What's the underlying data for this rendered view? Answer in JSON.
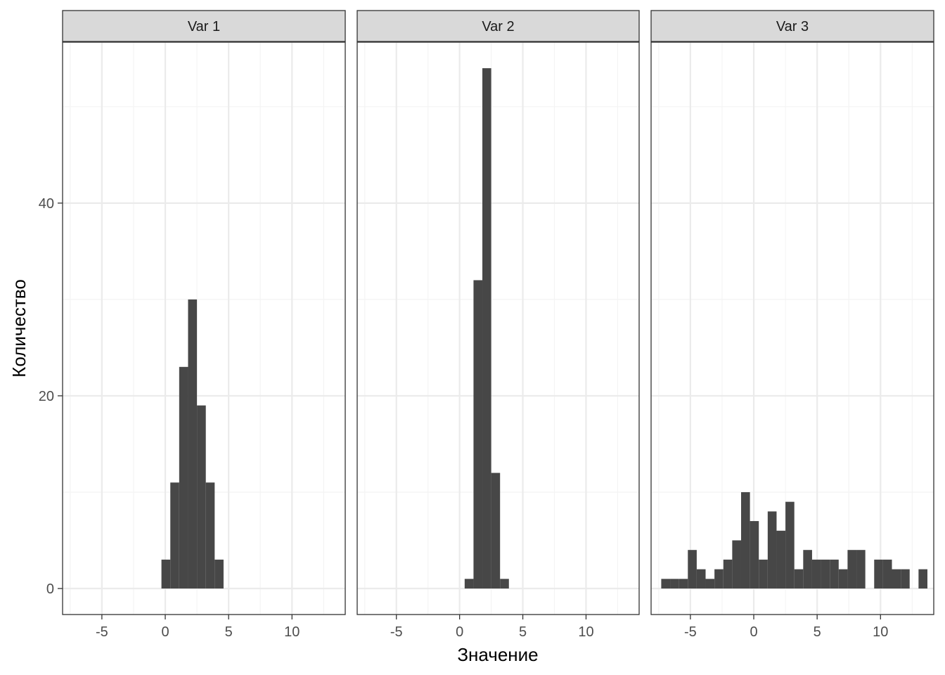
{
  "chart_data": {
    "type": "bar",
    "subtype": "faceted-histogram",
    "xlabel": "Значение",
    "ylabel": "Количество",
    "xlim": [
      -8.1,
      14.2
    ],
    "ylim": [
      -2.7,
      56.7
    ],
    "x_ticks": [
      -5,
      0,
      5,
      10
    ],
    "x_tick_labels": [
      "-5",
      "0",
      "5",
      "10"
    ],
    "y_ticks": [
      0,
      20,
      40
    ],
    "y_tick_labels": [
      "0",
      "20",
      "40"
    ],
    "grid": true,
    "colors": {
      "bar": "#474747",
      "strip_fill": "#d9d9d9",
      "grid_major": "#ebebeb",
      "grid_minor": "#f4f4f4",
      "border": "#333333"
    },
    "facets": [
      {
        "label": "Var 1",
        "bins": [
          {
            "x0": -0.3,
            "x1": 0.4,
            "count": 3
          },
          {
            "x0": 0.4,
            "x1": 1.1,
            "count": 11
          },
          {
            "x0": 1.1,
            "x1": 1.8,
            "count": 23
          },
          {
            "x0": 1.8,
            "x1": 2.5,
            "count": 30
          },
          {
            "x0": 2.5,
            "x1": 3.2,
            "count": 19
          },
          {
            "x0": 3.2,
            "x1": 3.9,
            "count": 11
          },
          {
            "x0": 3.9,
            "x1": 4.6,
            "count": 3
          }
        ]
      },
      {
        "label": "Var 2",
        "bins": [
          {
            "x0": 0.4,
            "x1": 1.1,
            "count": 1
          },
          {
            "x0": 1.1,
            "x1": 1.8,
            "count": 32
          },
          {
            "x0": 1.8,
            "x1": 2.5,
            "count": 54
          },
          {
            "x0": 2.5,
            "x1": 3.2,
            "count": 12
          },
          {
            "x0": 3.2,
            "x1": 3.9,
            "count": 1
          }
        ]
      },
      {
        "label": "Var 3",
        "bins": [
          {
            "x0": -7.3,
            "x1": -6.6,
            "count": 1
          },
          {
            "x0": -6.6,
            "x1": -5.9,
            "count": 1
          },
          {
            "x0": -5.9,
            "x1": -5.2,
            "count": 1
          },
          {
            "x0": -5.2,
            "x1": -4.5,
            "count": 4
          },
          {
            "x0": -4.5,
            "x1": -3.8,
            "count": 2
          },
          {
            "x0": -3.8,
            "x1": -3.1,
            "count": 1
          },
          {
            "x0": -3.1,
            "x1": -2.4,
            "count": 2
          },
          {
            "x0": -2.4,
            "x1": -1.7,
            "count": 3
          },
          {
            "x0": -1.7,
            "x1": -1.0,
            "count": 5
          },
          {
            "x0": -1.0,
            "x1": -0.3,
            "count": 10
          },
          {
            "x0": -0.3,
            "x1": 0.4,
            "count": 7
          },
          {
            "x0": 0.4,
            "x1": 1.1,
            "count": 3
          },
          {
            "x0": 1.1,
            "x1": 1.8,
            "count": 8
          },
          {
            "x0": 1.8,
            "x1": 2.5,
            "count": 6
          },
          {
            "x0": 2.5,
            "x1": 3.2,
            "count": 9
          },
          {
            "x0": 3.2,
            "x1": 3.9,
            "count": 2
          },
          {
            "x0": 3.9,
            "x1": 4.6,
            "count": 4
          },
          {
            "x0": 4.6,
            "x1": 5.3,
            "count": 3
          },
          {
            "x0": 5.3,
            "x1": 6.0,
            "count": 3
          },
          {
            "x0": 6.0,
            "x1": 6.7,
            "count": 3
          },
          {
            "x0": 6.7,
            "x1": 7.4,
            "count": 2
          },
          {
            "x0": 7.4,
            "x1": 8.1,
            "count": 4
          },
          {
            "x0": 8.1,
            "x1": 8.8,
            "count": 4
          },
          {
            "x0": 9.5,
            "x1": 10.2,
            "count": 3
          },
          {
            "x0": 10.2,
            "x1": 10.9,
            "count": 3
          },
          {
            "x0": 10.9,
            "x1": 11.6,
            "count": 2
          },
          {
            "x0": 11.6,
            "x1": 12.3,
            "count": 2
          },
          {
            "x0": 13.0,
            "x1": 13.7,
            "count": 2
          }
        ]
      }
    ]
  }
}
